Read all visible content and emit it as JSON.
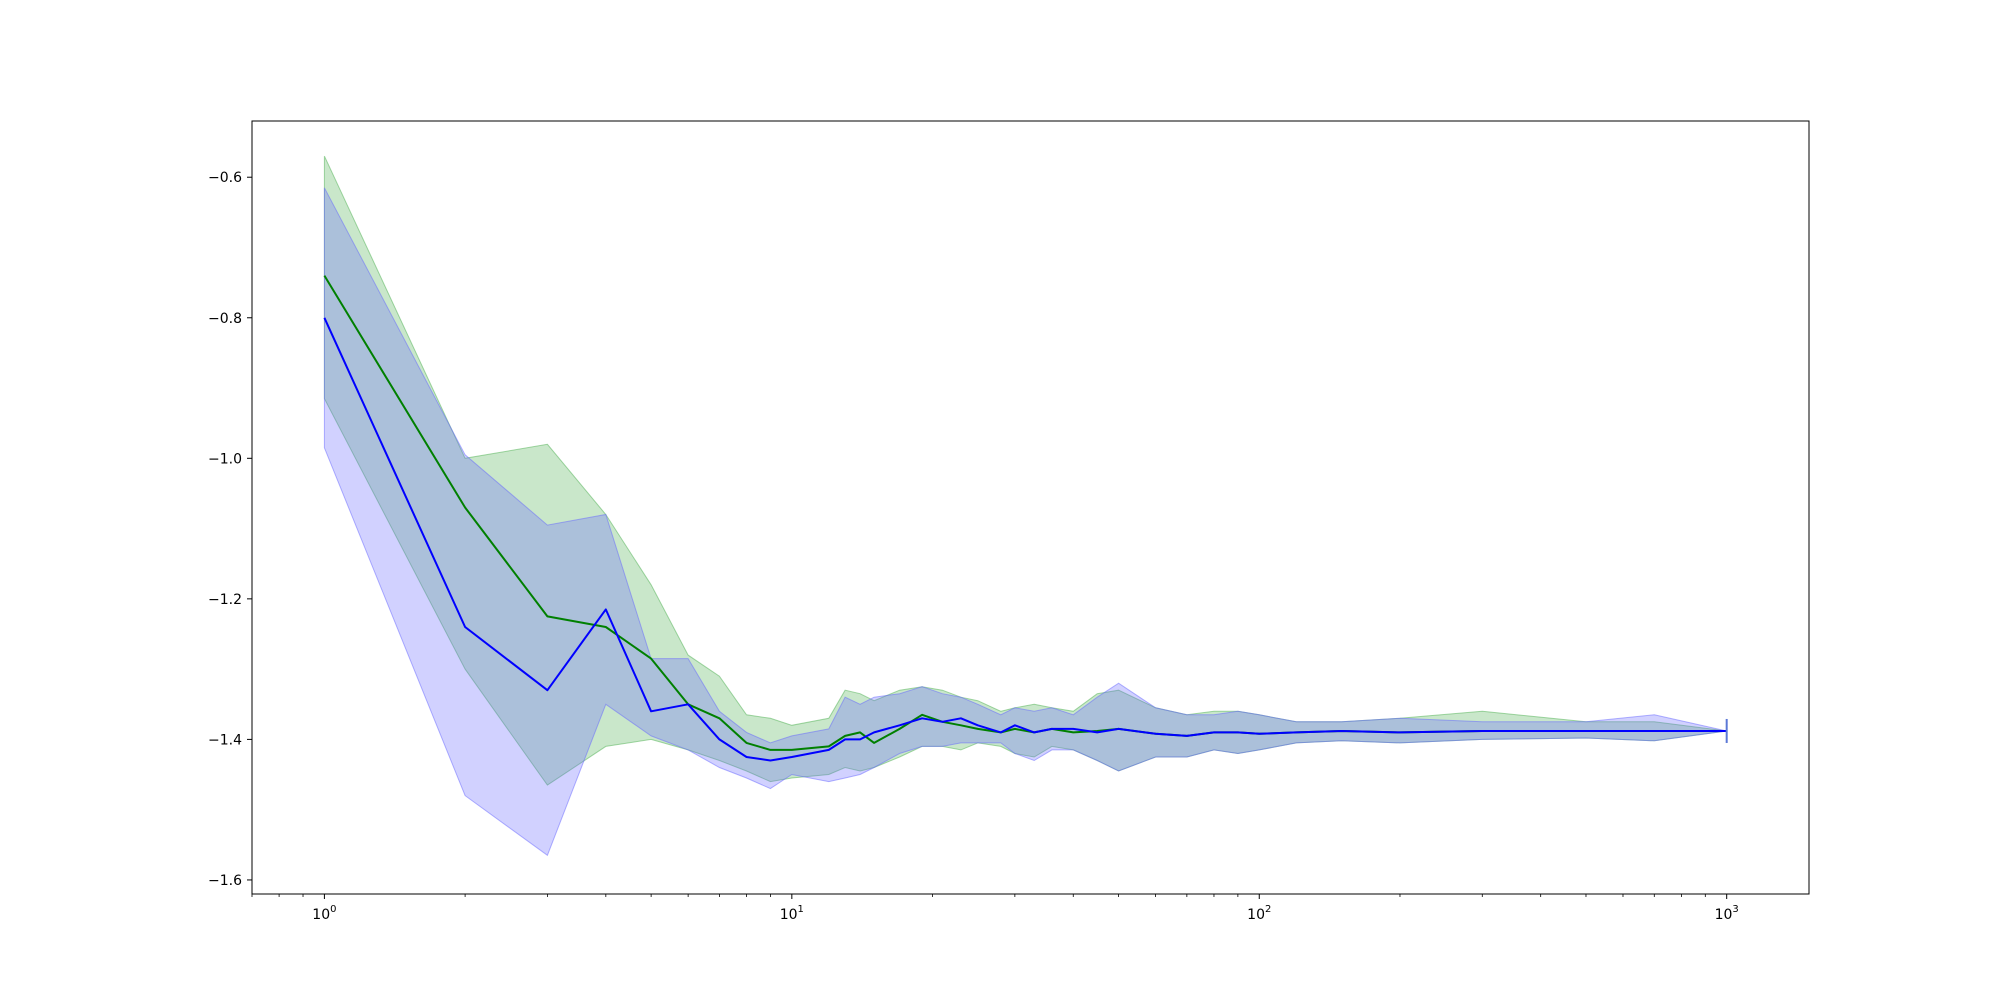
{
  "chart_data": {
    "type": "line",
    "title": "",
    "xlabel": "",
    "ylabel": "",
    "xscale": "log",
    "xlim": [
      0.7,
      1500
    ],
    "ylim": [
      -1.62,
      -0.52
    ],
    "grid": false,
    "x_ticks": [
      {
        "value": 1,
        "base": "10",
        "exp": "0"
      },
      {
        "value": 10,
        "base": "10",
        "exp": "1"
      },
      {
        "value": 100,
        "base": "10",
        "exp": "2"
      },
      {
        "value": 1000,
        "base": "10",
        "exp": "3"
      }
    ],
    "y_ticks": [
      {
        "value": -0.6,
        "label": "−0.6"
      },
      {
        "value": -0.8,
        "label": "−0.8"
      },
      {
        "value": -1.0,
        "label": "−1.0"
      },
      {
        "value": -1.2,
        "label": "−1.2"
      },
      {
        "value": -1.4,
        "label": "−1.4"
      },
      {
        "value": -1.6,
        "label": "−1.6"
      }
    ],
    "series": [
      {
        "color": "#008000",
        "band_color": "#4caf50",
        "x": [
          1,
          2,
          3,
          4,
          5,
          6,
          7,
          8,
          9,
          10,
          12,
          13,
          14,
          15,
          17,
          19,
          21,
          23,
          25,
          28,
          30,
          33,
          36,
          40,
          45,
          50,
          60,
          70,
          80,
          90,
          100,
          120,
          150,
          200,
          300,
          500,
          700,
          1000
        ],
        "y": [
          -0.74,
          -1.07,
          -1.225,
          -1.24,
          -1.285,
          -1.35,
          -1.37,
          -1.405,
          -1.415,
          -1.415,
          -1.41,
          -1.395,
          -1.39,
          -1.405,
          -1.385,
          -1.365,
          -1.375,
          -1.38,
          -1.385,
          -1.39,
          -1.385,
          -1.39,
          -1.385,
          -1.39,
          -1.388,
          -1.385,
          -1.392,
          -1.395,
          -1.39,
          -1.39,
          -1.392,
          -1.39,
          -1.388,
          -1.39,
          -1.388,
          -1.388,
          -1.388,
          -1.388
        ],
        "upper": [
          -0.57,
          -1.0,
          -0.98,
          -1.08,
          -1.18,
          -1.28,
          -1.31,
          -1.365,
          -1.37,
          -1.38,
          -1.37,
          -1.33,
          -1.335,
          -1.345,
          -1.33,
          -1.325,
          -1.33,
          -1.34,
          -1.345,
          -1.36,
          -1.355,
          -1.35,
          -1.355,
          -1.36,
          -1.335,
          -1.33,
          -1.355,
          -1.365,
          -1.36,
          -1.36,
          -1.365,
          -1.375,
          -1.375,
          -1.37,
          -1.36,
          -1.375,
          -1.375,
          -1.388
        ],
        "lower": [
          -0.915,
          -1.3,
          -1.465,
          -1.41,
          -1.4,
          -1.415,
          -1.43,
          -1.445,
          -1.46,
          -1.455,
          -1.45,
          -1.44,
          -1.445,
          -1.44,
          -1.425,
          -1.41,
          -1.41,
          -1.415,
          -1.405,
          -1.41,
          -1.42,
          -1.425,
          -1.41,
          -1.415,
          -1.43,
          -1.445,
          -1.425,
          -1.425,
          -1.415,
          -1.42,
          -1.415,
          -1.405,
          -1.402,
          -1.405,
          -1.4,
          -1.398,
          -1.402,
          -1.388
        ]
      },
      {
        "color": "#0000ff",
        "band_color": "#6666ff",
        "x": [
          1,
          2,
          3,
          4,
          5,
          6,
          7,
          8,
          9,
          10,
          12,
          13,
          14,
          15,
          17,
          19,
          21,
          23,
          25,
          28,
          30,
          33,
          36,
          40,
          45,
          50,
          60,
          70,
          80,
          90,
          100,
          120,
          150,
          200,
          300,
          500,
          700,
          1000
        ],
        "y": [
          -0.8,
          -1.24,
          -1.33,
          -1.215,
          -1.36,
          -1.35,
          -1.4,
          -1.425,
          -1.43,
          -1.425,
          -1.415,
          -1.4,
          -1.4,
          -1.39,
          -1.38,
          -1.37,
          -1.375,
          -1.37,
          -1.38,
          -1.39,
          -1.38,
          -1.39,
          -1.385,
          -1.385,
          -1.39,
          -1.385,
          -1.392,
          -1.395,
          -1.39,
          -1.39,
          -1.392,
          -1.39,
          -1.388,
          -1.39,
          -1.388,
          -1.388,
          -1.388,
          -1.388
        ],
        "upper": [
          -0.615,
          -0.995,
          -1.095,
          -1.08,
          -1.285,
          -1.285,
          -1.36,
          -1.39,
          -1.405,
          -1.395,
          -1.385,
          -1.34,
          -1.35,
          -1.34,
          -1.335,
          -1.325,
          -1.335,
          -1.34,
          -1.35,
          -1.365,
          -1.355,
          -1.36,
          -1.355,
          -1.365,
          -1.34,
          -1.32,
          -1.355,
          -1.365,
          -1.365,
          -1.36,
          -1.365,
          -1.375,
          -1.375,
          -1.37,
          -1.375,
          -1.375,
          -1.365,
          -1.388
        ],
        "lower": [
          -0.985,
          -1.48,
          -1.565,
          -1.35,
          -1.395,
          -1.415,
          -1.44,
          -1.455,
          -1.47,
          -1.45,
          -1.46,
          -1.455,
          -1.45,
          -1.44,
          -1.42,
          -1.41,
          -1.41,
          -1.405,
          -1.405,
          -1.405,
          -1.42,
          -1.43,
          -1.415,
          -1.415,
          -1.43,
          -1.445,
          -1.425,
          -1.425,
          -1.415,
          -1.42,
          -1.415,
          -1.405,
          -1.402,
          -1.405,
          -1.4,
          -1.398,
          -1.402,
          -1.388
        ]
      }
    ]
  }
}
